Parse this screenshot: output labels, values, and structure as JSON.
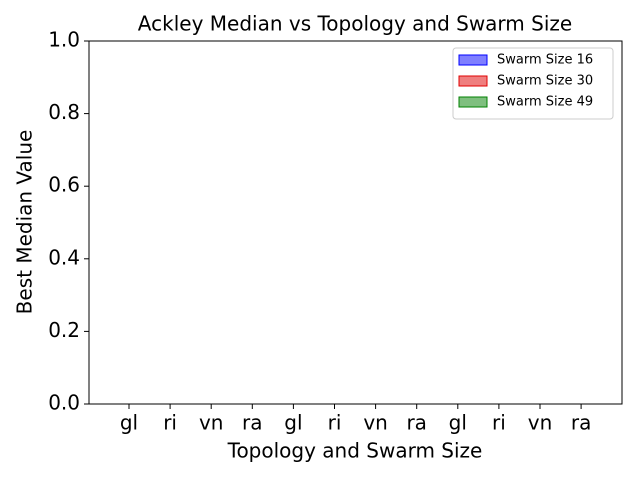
{
  "chart_data": {
    "type": "bar",
    "title": "Ackley Median vs Topology and Swarm Size",
    "x_label": "Topology and Swarm Size",
    "y_label": "Best Median Value",
    "categories": [
      "gl",
      "ri",
      "vn",
      "ra",
      "gl",
      "ri",
      "vn",
      "ra",
      "gl",
      "ri",
      "vn",
      "ra"
    ],
    "series": [
      {
        "name": "Swarm Size 16",
        "color": "#0000ff",
        "values": [
          0,
          0,
          0,
          0,
          null,
          null,
          null,
          null,
          null,
          null,
          null,
          null
        ]
      },
      {
        "name": "Swarm Size 30",
        "color": "#e00000",
        "values": [
          null,
          null,
          null,
          null,
          0,
          0,
          0,
          0,
          null,
          null,
          null,
          null
        ]
      },
      {
        "name": "Swarm Size 49",
        "color": "#008000",
        "values": [
          null,
          null,
          null,
          null,
          null,
          null,
          null,
          null,
          0,
          0,
          0,
          0
        ]
      }
    ],
    "ylim": [
      0,
      1
    ],
    "yticks": [
      {
        "value": 0,
        "label": "0.0"
      },
      0.2,
      0.4,
      0.6,
      0.8,
      {
        "value": 1,
        "label": "1.0"
      }
    ],
    "grid": false,
    "legend": "upper right"
  }
}
